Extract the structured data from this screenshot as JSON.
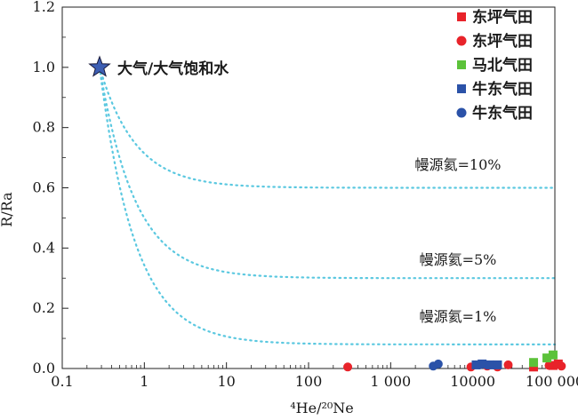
{
  "chart_data": {
    "type": "scatter",
    "xlabel": "⁴He/²⁰Ne",
    "ylabel": "R/Ra",
    "x_scale": "log",
    "xlim": [
      0.1,
      100000
    ],
    "ylim": [
      0,
      1.2
    ],
    "x_ticks": [
      {
        "value": 0.1,
        "label": "0.1"
      },
      {
        "value": 1,
        "label": "1"
      },
      {
        "value": 10,
        "label": "10"
      },
      {
        "value": 100,
        "label": "100"
      },
      {
        "value": 1000,
        "label": "1 000"
      },
      {
        "value": 10000,
        "label": "10000"
      },
      {
        "value": 100000,
        "label": "100 000"
      }
    ],
    "y_ticks": [
      {
        "value": 0,
        "label": "0.0"
      },
      {
        "value": 0.2,
        "label": "0.2"
      },
      {
        "value": 0.4,
        "label": "0.4"
      },
      {
        "value": 0.6,
        "label": "0.6"
      },
      {
        "value": 0.8,
        "label": "0.8"
      },
      {
        "value": 1.0,
        "label": "1.0"
      },
      {
        "value": 1.2,
        "label": "1.2"
      }
    ],
    "grid": false,
    "legend_position": "top-right",
    "atmosphere_point": {
      "x": 0.285,
      "y": 1.0,
      "label": "大气/大气饱和水",
      "color": "#3d5fb4"
    },
    "mixing_lines": [
      {
        "label": "幔源氦=10%",
        "color": "#5bc8e0",
        "endmember_y": 0.6
      },
      {
        "label": "幔源氦=5%",
        "color": "#5bc8e0",
        "endmember_y": 0.3
      },
      {
        "label": "幔源氦=1%",
        "color": "#5bc8e0",
        "endmember_y": 0.08
      }
    ],
    "series": [
      {
        "name": "东坪气田",
        "marker": "square",
        "color": "#e8232a",
        "points": [
          [
            55000,
            0.005
          ],
          [
            95000,
            0.01
          ],
          [
            110000,
            0.015
          ]
        ]
      },
      {
        "name": "东坪气田",
        "marker": "circle",
        "color": "#e8232a",
        "points": [
          [
            300,
            0.005
          ],
          [
            9500,
            0.005
          ],
          [
            15000,
            0.008
          ],
          [
            20000,
            0.005
          ],
          [
            27000,
            0.012
          ],
          [
            85000,
            0.01
          ],
          [
            120000,
            0.008
          ]
        ]
      },
      {
        "name": "马北气田",
        "marker": "square",
        "color": "#5cc23a",
        "points": [
          [
            55000,
            0.02
          ],
          [
            80000,
            0.035
          ],
          [
            95000,
            0.045
          ]
        ]
      },
      {
        "name": "牛东气田",
        "marker": "square",
        "color": "#2b52a8",
        "points": [
          [
            11000,
            0.012
          ],
          [
            13000,
            0.015
          ],
          [
            16000,
            0.012
          ],
          [
            20000,
            0.012
          ]
        ]
      },
      {
        "name": "牛东气田",
        "marker": "circle",
        "color": "#2b52a8",
        "points": [
          [
            3300,
            0.008
          ],
          [
            3800,
            0.015
          ],
          [
            12000,
            0.012
          ]
        ]
      }
    ]
  }
}
